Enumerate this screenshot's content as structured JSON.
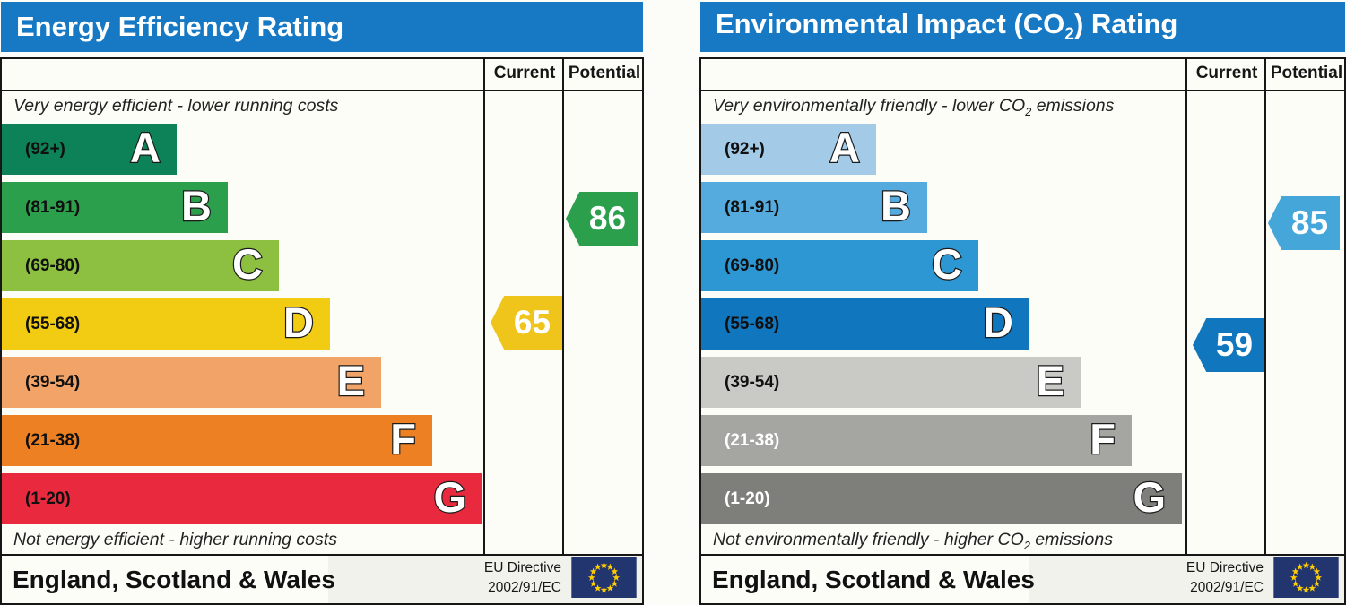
{
  "page": {
    "background": "#fcfcf8",
    "header_color": "#1779c4"
  },
  "columns": {
    "current_label": "Current",
    "potential_label": "Potential"
  },
  "footer": {
    "region_label": "England, Scotland & Wales",
    "directive_line1": "EU Directive",
    "directive_line2": "2002/91/EC",
    "eu_flag": {
      "background": "#23356f",
      "star_color": "#ffcc00"
    }
  },
  "panels": [
    {
      "name": "Energy Efficiency Rating",
      "title_segments": [
        {
          "t": "Energy Efficiency Rating"
        }
      ],
      "top_note_segments": [
        {
          "t": "Very energy efficient - lower running costs"
        }
      ],
      "bottom_note_segments": [
        {
          "t": "Not energy efficient - higher running costs"
        }
      ],
      "bands": [
        {
          "letter": "A",
          "range_label": "(92+)",
          "min": 92,
          "max": 100,
          "color": "#0d8157",
          "label_color": "#101010"
        },
        {
          "letter": "B",
          "range_label": "(81-91)",
          "min": 81,
          "max": 91,
          "color": "#2c9f4d",
          "label_color": "#101010"
        },
        {
          "letter": "C",
          "range_label": "(69-80)",
          "min": 69,
          "max": 80,
          "color": "#8dbf41",
          "label_color": "#101010"
        },
        {
          "letter": "D",
          "range_label": "(55-68)",
          "min": 55,
          "max": 68,
          "color": "#f1cc12",
          "label_color": "#101010"
        },
        {
          "letter": "E",
          "range_label": "(39-54)",
          "min": 39,
          "max": 54,
          "color": "#f2a468",
          "label_color": "#101010"
        },
        {
          "letter": "F",
          "range_label": "(21-38)",
          "min": 21,
          "max": 38,
          "color": "#ec8023",
          "label_color": "#101010"
        },
        {
          "letter": "G",
          "range_label": "(1-20)",
          "min": 1,
          "max": 20,
          "color": "#e9293d",
          "label_color": "#101010"
        }
      ],
      "current": {
        "value": 65,
        "color": "#efc51c"
      },
      "potential": {
        "value": 86,
        "color": "#2c9f4d"
      }
    },
    {
      "name": "Environmental Impact (CO2) Rating",
      "title_segments": [
        {
          "t": "Environmental Impact (CO"
        },
        {
          "t": "2",
          "sub": true
        },
        {
          "t": ") Rating"
        }
      ],
      "top_note_segments": [
        {
          "t": "Very environmentally friendly - lower CO"
        },
        {
          "t": "2",
          "sub": true
        },
        {
          "t": " emissions"
        }
      ],
      "bottom_note_segments": [
        {
          "t": "Not environmentally friendly - higher CO"
        },
        {
          "t": "2",
          "sub": true
        },
        {
          "t": " emissions"
        }
      ],
      "bands": [
        {
          "letter": "A",
          "range_label": "(92+)",
          "min": 92,
          "max": 100,
          "color": "#a3cbe8",
          "label_color": "#101010"
        },
        {
          "letter": "B",
          "range_label": "(81-91)",
          "min": 81,
          "max": 91,
          "color": "#55abdd",
          "label_color": "#101010"
        },
        {
          "letter": "C",
          "range_label": "(69-80)",
          "min": 69,
          "max": 80,
          "color": "#2d97d3",
          "label_color": "#101010"
        },
        {
          "letter": "D",
          "range_label": "(55-68)",
          "min": 55,
          "max": 68,
          "color": "#1076bd",
          "label_color": "#101010"
        },
        {
          "letter": "E",
          "range_label": "(39-54)",
          "min": 39,
          "max": 54,
          "color": "#c9c9c5",
          "label_color": "#101010"
        },
        {
          "letter": "F",
          "range_label": "(21-38)",
          "min": 21,
          "max": 38,
          "color": "#a5a5a1",
          "label_color": "#ffffff"
        },
        {
          "letter": "G",
          "range_label": "(1-20)",
          "min": 1,
          "max": 20,
          "color": "#7e7e7a",
          "label_color": "#ffffff"
        }
      ],
      "current": {
        "value": 59,
        "color": "#1076bd"
      },
      "potential": {
        "value": 85,
        "color": "#45a6da"
      }
    }
  ],
  "chart_data": [
    {
      "type": "bar",
      "title": "Energy Efficiency Rating",
      "categories": [
        "A",
        "B",
        "C",
        "D",
        "E",
        "F",
        "G"
      ],
      "band_ranges": [
        "92+",
        "81-91",
        "69-80",
        "55-68",
        "39-54",
        "21-38",
        "1-20"
      ],
      "band_colors": [
        "#0d8157",
        "#2c9f4d",
        "#8dbf41",
        "#f1cc12",
        "#f2a468",
        "#ec8023",
        "#e9293d"
      ],
      "series": [
        {
          "name": "Current",
          "values": [
            65
          ],
          "band": "D",
          "color": "#efc51c"
        },
        {
          "name": "Potential",
          "values": [
            86
          ],
          "band": "B",
          "color": "#2c9f4d"
        }
      ],
      "top_note": "Very energy efficient - lower running costs",
      "bottom_note": "Not energy efficient - higher running costs",
      "region": "England, Scotland & Wales",
      "directive": "EU Directive 2002/91/EC",
      "scale": [
        1,
        100
      ]
    },
    {
      "type": "bar",
      "title": "Environmental Impact (CO2) Rating",
      "categories": [
        "A",
        "B",
        "C",
        "D",
        "E",
        "F",
        "G"
      ],
      "band_ranges": [
        "92+",
        "81-91",
        "69-80",
        "55-68",
        "39-54",
        "21-38",
        "1-20"
      ],
      "band_colors": [
        "#a3cbe8",
        "#55abdd",
        "#2d97d3",
        "#1076bd",
        "#c9c9c5",
        "#a5a5a1",
        "#7e7e7a"
      ],
      "series": [
        {
          "name": "Current",
          "values": [
            59
          ],
          "band": "D",
          "color": "#1076bd"
        },
        {
          "name": "Potential",
          "values": [
            85
          ],
          "band": "B",
          "color": "#45a6da"
        }
      ],
      "top_note": "Very environmentally friendly - lower CO2 emissions",
      "bottom_note": "Not environmentally friendly - higher CO2 emissions",
      "region": "England, Scotland & Wales",
      "directive": "EU Directive 2002/91/EC",
      "scale": [
        1,
        100
      ]
    }
  ]
}
